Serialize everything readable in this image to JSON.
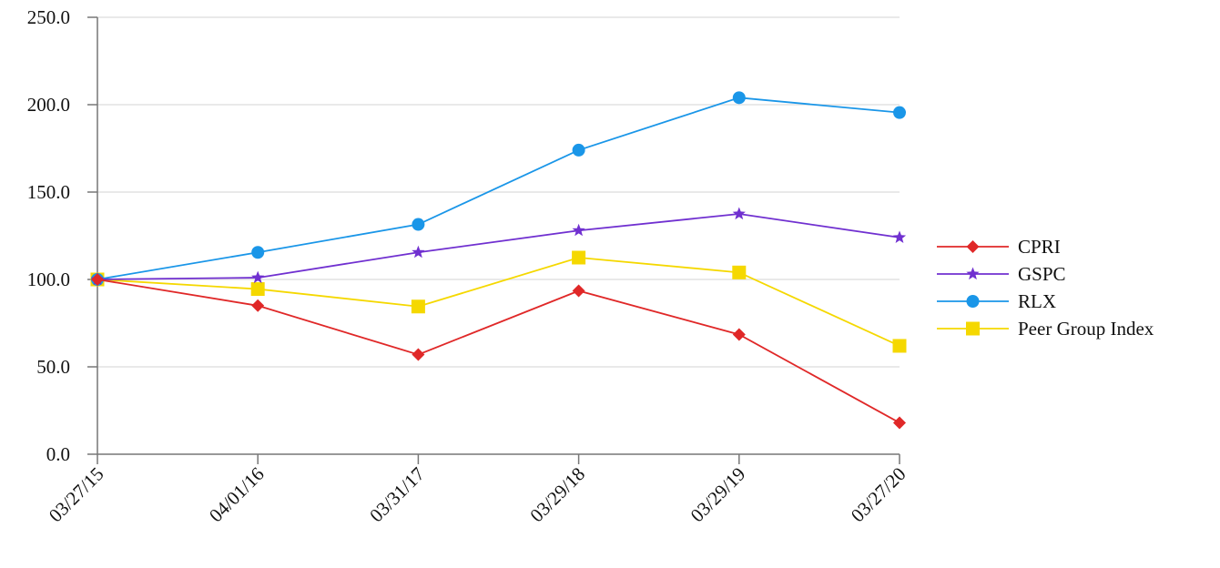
{
  "chart_data": {
    "type": "line",
    "title": "",
    "xlabel": "",
    "ylabel": "",
    "categories": [
      "03/27/15",
      "04/01/16",
      "03/31/17",
      "03/29/18",
      "03/29/19",
      "03/27/20"
    ],
    "yticks": [
      "0.0",
      "50.0",
      "100.0",
      "150.0",
      "200.0",
      "250.0"
    ],
    "ylim": [
      0,
      250
    ],
    "grid": true,
    "legend_position": "right",
    "series": [
      {
        "name": "CPRI",
        "color": "#e02828",
        "marker": "diamond",
        "values": [
          100.0,
          85.0,
          57.0,
          93.5,
          68.5,
          18.0
        ]
      },
      {
        "name": "GSPC",
        "color": "#7030d0",
        "marker": "star",
        "values": [
          100.0,
          101.0,
          115.5,
          128.0,
          137.5,
          124.0
        ]
      },
      {
        "name": "RLX",
        "color": "#1a96e8",
        "marker": "circle",
        "values": [
          100.0,
          115.5,
          131.5,
          174.0,
          204.0,
          195.5
        ]
      },
      {
        "name": "Peer Group Index",
        "color": "#f5d800",
        "marker": "square",
        "values": [
          100.0,
          94.5,
          84.5,
          112.5,
          104.0,
          62.0
        ]
      }
    ]
  }
}
